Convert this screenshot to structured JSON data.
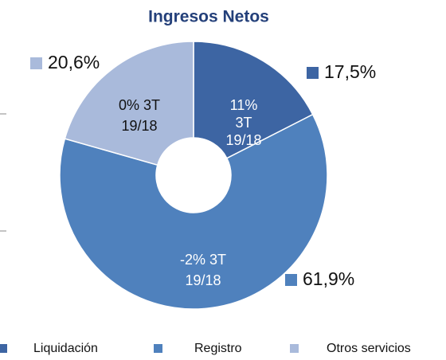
{
  "chart_data": {
    "type": "donut",
    "title": "Ingresos Netos",
    "categories": [
      "Liquidación",
      "Registro",
      "Otros servicios"
    ],
    "values": [
      17.5,
      61.9,
      20.6
    ],
    "value_labels": [
      "17,5%",
      "61,9%",
      "20,6%"
    ],
    "colors": [
      "#3d65a3",
      "#4f81bd",
      "#a9badb"
    ],
    "annotations": [
      [
        "11%",
        "3T",
        "19/18"
      ],
      [
        "-2% 3T",
        "19/18"
      ],
      [
        "0% 3T",
        "19/18"
      ]
    ]
  }
}
